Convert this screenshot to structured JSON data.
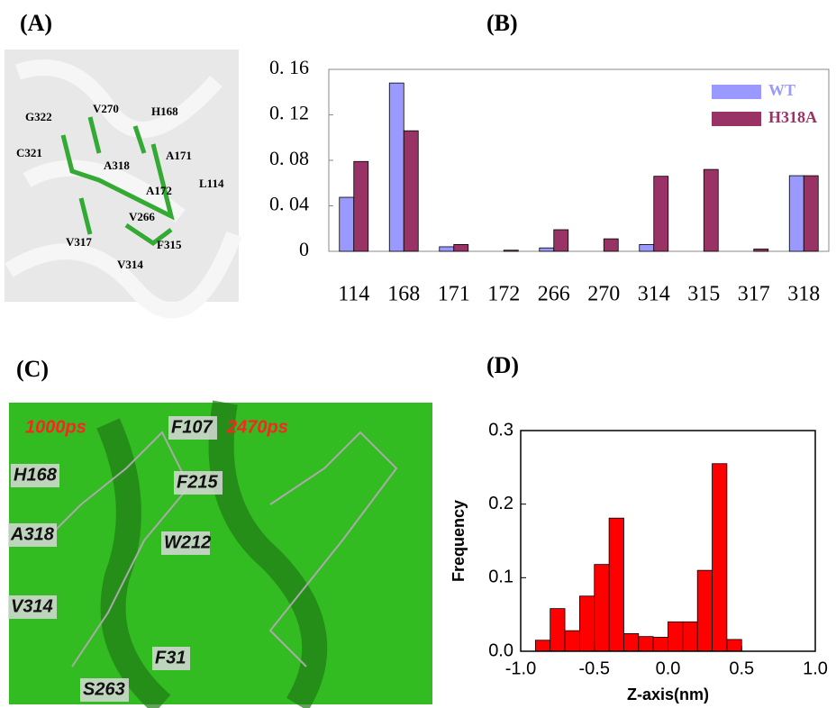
{
  "panels": {
    "a": "(A)",
    "b": "(B)",
    "c": "(C)",
    "d": "(D)"
  },
  "image_a": {
    "labels": [
      "G322",
      "V270",
      "H168",
      "C321",
      "A318",
      "A171",
      "A172",
      "L114",
      "V266",
      "V317",
      "F315",
      "V314"
    ]
  },
  "image_c": {
    "labels": [
      "1000ps",
      "2470ps",
      "F107",
      "H168",
      "F215",
      "A318",
      "W212",
      "V314",
      "F31",
      "S263"
    ]
  },
  "chart_data": [
    {
      "type": "bar",
      "categories": [
        "114",
        "168",
        "171",
        "172",
        "266",
        "270",
        "314",
        "315",
        "317",
        "318"
      ],
      "series": [
        {
          "name": "WT",
          "color": "#9999ff",
          "values": [
            0.0475,
            0.148,
            0.004,
            0,
            0.003,
            0,
            0.006,
            0,
            0,
            0.0665
          ]
        },
        {
          "name": "H318A",
          "color": "#993366",
          "values": [
            0.079,
            0.106,
            0.006,
            0.001,
            0.019,
            0.011,
            0.066,
            0.072,
            0.002,
            0.0665
          ]
        }
      ],
      "ylim": [
        0,
        0.16
      ],
      "yticks": [
        {
          "value": 0,
          "label": "0"
        },
        {
          "value": 0.04,
          "label": "0. 04"
        },
        {
          "value": 0.08,
          "label": "0. 08"
        },
        {
          "value": 0.12,
          "label": "0. 12"
        },
        {
          "value": 0.16,
          "label": "0. 16"
        }
      ],
      "legend": "upper right",
      "grid": false
    },
    {
      "type": "histogram",
      "bins": [
        -0.9,
        -0.8,
        -0.7,
        -0.6,
        -0.5,
        -0.4,
        -0.3,
        -0.2,
        -0.1,
        0,
        0.1,
        0.2,
        0.3,
        0.4,
        0.5
      ],
      "values": [
        0.015,
        0.058,
        0.028,
        0.075,
        0.118,
        0.181,
        0.024,
        0.02,
        0.019,
        0.04,
        0.04,
        0.11,
        0.255,
        0.016
      ],
      "color": "#ff0000",
      "xlabel": "Z-axis(nm)",
      "ylabel": "Frequency",
      "xlim": [
        -1,
        1
      ],
      "xticks": [
        {
          "value": -1,
          "label": "-1.0"
        },
        {
          "value": -0.5,
          "label": "-0.5"
        },
        {
          "value": 0,
          "label": "0.0"
        },
        {
          "value": 0.5,
          "label": "0.5"
        },
        {
          "value": 1,
          "label": "1.0"
        }
      ],
      "ylim": [
        0,
        0.3
      ],
      "yticks": [
        {
          "value": 0,
          "label": "0.0"
        },
        {
          "value": 0.1,
          "label": "0.1"
        },
        {
          "value": 0.2,
          "label": "0.2"
        },
        {
          "value": 0.3,
          "label": "0.3"
        }
      ],
      "grid": false
    }
  ]
}
